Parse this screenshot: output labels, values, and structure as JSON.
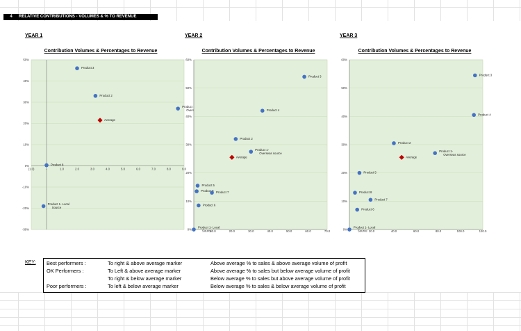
{
  "header": {
    "number": "4",
    "title": "RELATIVE CONTRIBUTIONS - VOLUMES & % TO REVENUE"
  },
  "charts": [
    {
      "year_label": "YEAR 1",
      "title": "Contribution Volumes & Percentages to Revenue",
      "xlim": [
        -1.0,
        9.0
      ],
      "ylim": [
        -30,
        50
      ],
      "x_ticks": [
        "(1.0)",
        "-",
        "1.0",
        "2.0",
        "3.0",
        "4.0",
        "5.0",
        "6.0",
        "7.0",
        "8.0",
        "9.0"
      ],
      "y_ticks": [
        "-30%",
        "-20%",
        "-10%",
        "0%",
        "10%",
        "20%",
        "30%",
        "40%",
        "50%"
      ]
    },
    {
      "year_label": "YEAR 2",
      "title": "Contribution Volumes & Percentages to Revenue",
      "xlim": [
        0,
        70
      ],
      "ylim": [
        0,
        60
      ],
      "x_ticks": [
        "-",
        "10.0",
        "20.0",
        "30.0",
        "40.0",
        "50.0",
        "60.0",
        "70.0"
      ],
      "y_ticks": [
        "0%",
        "10%",
        "20%",
        "30%",
        "40%",
        "50%",
        "60%"
      ]
    },
    {
      "year_label": "YEAR 3",
      "title": "Contribution Volumes & Percentages to Revenue",
      "xlim": [
        0,
        120
      ],
      "ylim": [
        0,
        60
      ],
      "x_ticks": [
        "-",
        "20.0",
        "40.0",
        "60.0",
        "80.0",
        "100.0",
        "120.0"
      ],
      "y_ticks": [
        "0%",
        "10%",
        "20%",
        "30%",
        "40%",
        "50%",
        "60%"
      ]
    }
  ],
  "chart_data": [
    {
      "type": "scatter",
      "title": "Contribution Volumes & Percentages to Revenue",
      "xlim": [
        -1.0,
        9.0
      ],
      "ylim": [
        -30,
        50
      ],
      "grid": true,
      "series": [
        {
          "name": "Products",
          "color": "#4472c4",
          "points": [
            {
              "label": "Product 3",
              "x": 2.0,
              "y": 46
            },
            {
              "label": "Product 2",
              "x": 3.2,
              "y": 33
            },
            {
              "label": "Product 1- Overseas source",
              "x": 8.6,
              "y": 27
            },
            {
              "label": "Product 8",
              "x": 0.0,
              "y": 0.3
            },
            {
              "label": "Product 1- Local Source",
              "x": -0.2,
              "y": -19
            }
          ]
        },
        {
          "name": "Average",
          "color": "#c00000",
          "marker": "diamond",
          "points": [
            {
              "label": "Average",
              "x": 3.5,
              "y": 21.5
            }
          ]
        }
      ]
    },
    {
      "type": "scatter",
      "title": "Contribution Volumes & Percentages to Revenue",
      "xlim": [
        0,
        70
      ],
      "ylim": [
        0,
        60
      ],
      "grid": true,
      "series": [
        {
          "name": "Products",
          "color": "#4472c4",
          "points": [
            {
              "label": "Product 3",
              "x": 58,
              "y": 54
            },
            {
              "label": "Product 4",
              "x": 36,
              "y": 42
            },
            {
              "label": "Product 2",
              "x": 22,
              "y": 32
            },
            {
              "label": "Product 1- Overseas source",
              "x": 30,
              "y": 27.5
            },
            {
              "label": "Product 5",
              "x": 2,
              "y": 15.5
            },
            {
              "label": "Product 8",
              "x": 1.5,
              "y": 13.5
            },
            {
              "label": "Product 7",
              "x": 9.5,
              "y": 13
            },
            {
              "label": "Product 6",
              "x": 2.5,
              "y": 8.5
            },
            {
              "label": "Product 1- Local Source",
              "x": 0,
              "y": 0
            }
          ]
        },
        {
          "name": "Average",
          "color": "#c00000",
          "marker": "diamond",
          "points": [
            {
              "label": "Average",
              "x": 20,
              "y": 25.5
            }
          ]
        }
      ]
    },
    {
      "type": "scatter",
      "title": "Contribution Volumes & Percentages to Revenue",
      "xlim": [
        0,
        120
      ],
      "ylim": [
        0,
        60
      ],
      "grid": true,
      "series": [
        {
          "name": "Products",
          "color": "#4472c4",
          "points": [
            {
              "label": "Product 3",
              "x": 113,
              "y": 54.5
            },
            {
              "label": "Product 4",
              "x": 112,
              "y": 40.5
            },
            {
              "label": "Product 2",
              "x": 40,
              "y": 30.5
            },
            {
              "label": "Product 1- Overseas source",
              "x": 77,
              "y": 27
            },
            {
              "label": "Product 5",
              "x": 9,
              "y": 20
            },
            {
              "label": "Product 8",
              "x": 5,
              "y": 13
            },
            {
              "label": "Product 7",
              "x": 19,
              "y": 10.5
            },
            {
              "label": "Product 6",
              "x": 7,
              "y": 7
            },
            {
              "label": "Product 1- Local Source",
              "x": 0,
              "y": 0
            }
          ]
        },
        {
          "name": "Average",
          "color": "#c00000",
          "marker": "diamond",
          "points": [
            {
              "label": "Average",
              "x": 47,
              "y": 25.5
            }
          ]
        }
      ]
    }
  ],
  "key": {
    "label": "KEY:",
    "rows": [
      {
        "category": "Best performers :",
        "rule": "To right & above average marker",
        "meaning": "Above average % to sales & above average volume of profit"
      },
      {
        "category": "OK Performers :",
        "rule": "To Left & above average marker",
        "meaning": "Above average % to sales but below average volume of profit"
      },
      {
        "category": "",
        "rule": "To right & below average marker",
        "meaning": "Below average % to sales but above average volume of profit"
      },
      {
        "category": "Poor performers :",
        "rule": "To left & below average marker",
        "meaning": "Below average % to sales & below average volume of profit"
      }
    ]
  }
}
